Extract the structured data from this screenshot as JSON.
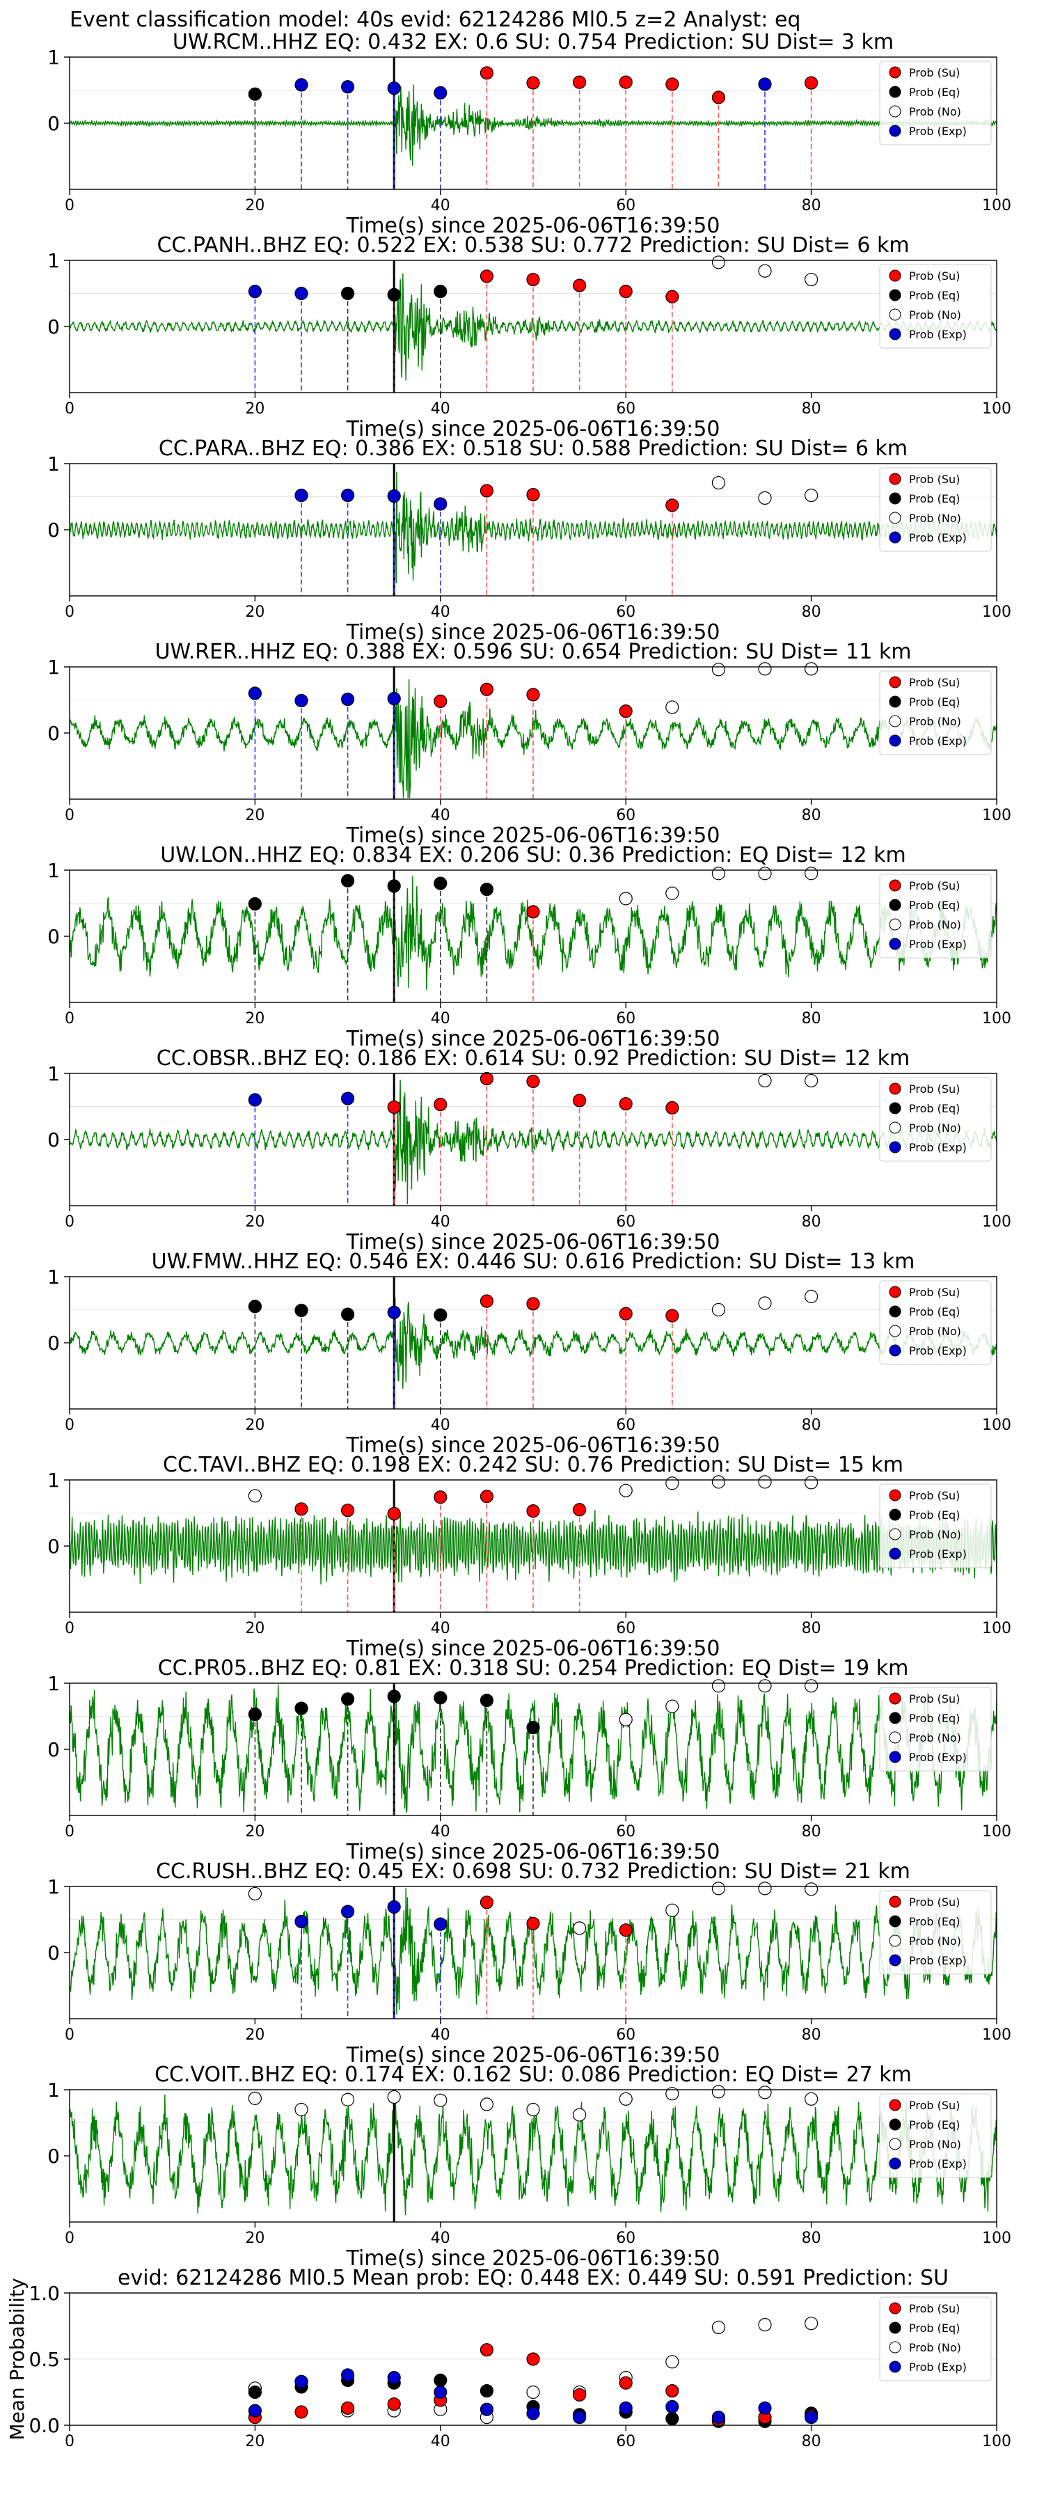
{
  "figure_title": "Event classification model: 40s evid: 62124286 Ml0.5 z=2 Analyst: eq",
  "colors": {
    "trace": "#008000",
    "su": "#ff0000",
    "eq": "#000000",
    "no": "#ffffff",
    "exp": "#0000cc",
    "onset_line": "#000000"
  },
  "chart_data": [
    {
      "type": "scatter",
      "title": "UW.RCM..HHZ   EQ: 0.432  EX: 0.6  SU: 0.754   Prediction: SU    Dist= 3 km",
      "xlabel": "Time(s) since 2025-06-06T16:39:50",
      "xlim": [
        0,
        100
      ],
      "ylim": [
        -1,
        1
      ],
      "x_ticks": [
        0,
        20,
        40,
        60,
        80,
        100
      ],
      "y_ticks": [
        1,
        0
      ],
      "onset": 35,
      "noise": 0.03,
      "burst": 0.55,
      "period": 0.25,
      "legend": [
        "Prob (Su)",
        "Prob (Eq)",
        "Prob (No)",
        "Prob (Exp)"
      ],
      "points": [
        [
          20,
          0.44,
          "eq"
        ],
        [
          25,
          0.58,
          "exp"
        ],
        [
          30,
          0.55,
          "exp"
        ],
        [
          35,
          0.53,
          "exp"
        ],
        [
          40,
          0.46,
          "exp"
        ],
        [
          45,
          0.76,
          "su"
        ],
        [
          50,
          0.61,
          "su"
        ],
        [
          55,
          0.62,
          "su"
        ],
        [
          60,
          0.62,
          "su"
        ],
        [
          65,
          0.59,
          "su"
        ],
        [
          70,
          0.39,
          "su"
        ],
        [
          75,
          0.59,
          "exp"
        ],
        [
          80,
          0.61,
          "su"
        ]
      ]
    },
    {
      "type": "scatter",
      "title": "CC.PANH..BHZ   EQ: 0.522  EX: 0.538  SU: 0.772   Prediction: SU    Dist= 6 km",
      "xlabel": "Time(s) since 2025-06-06T16:39:50",
      "xlim": [
        0,
        100
      ],
      "ylim": [
        -1,
        1
      ],
      "x_ticks": [
        0,
        20,
        40,
        60,
        80,
        100
      ],
      "y_ticks": [
        1,
        0
      ],
      "onset": 35,
      "noise": 0.07,
      "burst": 0.75,
      "period": 0.8,
      "legend": [
        "Prob (Su)",
        "Prob (Eq)",
        "Prob (No)",
        "Prob (Exp)"
      ],
      "points": [
        [
          20,
          0.53,
          "exp"
        ],
        [
          25,
          0.5,
          "exp"
        ],
        [
          30,
          0.5,
          "eq"
        ],
        [
          35,
          0.48,
          "eq"
        ],
        [
          40,
          0.53,
          "eq"
        ],
        [
          45,
          0.76,
          "su"
        ],
        [
          50,
          0.71,
          "su"
        ],
        [
          55,
          0.62,
          "su"
        ],
        [
          60,
          0.53,
          "su"
        ],
        [
          65,
          0.45,
          "su"
        ],
        [
          70,
          0.97,
          "no"
        ],
        [
          75,
          0.84,
          "no"
        ],
        [
          80,
          0.71,
          "no"
        ]
      ]
    },
    {
      "type": "scatter",
      "title": "CC.PARA..BHZ   EQ: 0.386  EX: 0.518  SU: 0.588   Prediction: SU    Dist= 6 km",
      "xlabel": "Time(s) since 2025-06-06T16:39:50",
      "xlim": [
        0,
        100
      ],
      "ylim": [
        -1,
        1
      ],
      "x_ticks": [
        0,
        20,
        40,
        60,
        80,
        100
      ],
      "y_ticks": [
        1,
        0
      ],
      "onset": 35,
      "noise": 0.12,
      "burst": 0.65,
      "period": 0.5,
      "legend": [
        "Prob (Su)",
        "Prob (Eq)",
        "Prob (No)",
        "Prob (Exp)"
      ],
      "points": [
        [
          25,
          0.52,
          "exp"
        ],
        [
          30,
          0.52,
          "exp"
        ],
        [
          35,
          0.51,
          "exp"
        ],
        [
          40,
          0.39,
          "exp"
        ],
        [
          45,
          0.59,
          "su"
        ],
        [
          50,
          0.53,
          "su"
        ],
        [
          65,
          0.37,
          "su"
        ],
        [
          70,
          0.71,
          "no"
        ],
        [
          75,
          0.48,
          "no"
        ],
        [
          80,
          0.52,
          "no"
        ]
      ]
    },
    {
      "type": "scatter",
      "title": "UW.RER..HHZ   EQ: 0.388  EX: 0.596  SU: 0.654   Prediction: SU    Dist= 11 km",
      "xlabel": "Time(s) since 2025-06-06T16:39:50",
      "xlim": [
        0,
        100
      ],
      "ylim": [
        -1,
        1
      ],
      "x_ticks": [
        0,
        20,
        40,
        60,
        80,
        100
      ],
      "y_ticks": [
        1,
        0
      ],
      "onset": 35,
      "noise": 0.2,
      "burst": 0.8,
      "period": 2.5,
      "legend": [
        "Prob (Su)",
        "Prob (Eq)",
        "Prob (No)",
        "Prob (Exp)"
      ],
      "points": [
        [
          20,
          0.6,
          "exp"
        ],
        [
          25,
          0.49,
          "exp"
        ],
        [
          30,
          0.51,
          "exp"
        ],
        [
          35,
          0.52,
          "exp"
        ],
        [
          40,
          0.48,
          "su"
        ],
        [
          45,
          0.66,
          "su"
        ],
        [
          50,
          0.58,
          "su"
        ],
        [
          60,
          0.33,
          "su"
        ],
        [
          65,
          0.39,
          "no"
        ],
        [
          70,
          0.96,
          "no"
        ],
        [
          75,
          0.97,
          "no"
        ],
        [
          80,
          0.97,
          "no"
        ]
      ]
    },
    {
      "type": "scatter",
      "title": "UW.LON..HHZ   EQ: 0.834  EX: 0.206  SU: 0.36   Prediction: EQ    Dist= 12 km",
      "xlabel": "Time(s) since 2025-06-06T16:39:50",
      "xlim": [
        0,
        100
      ],
      "ylim": [
        -1,
        1
      ],
      "x_ticks": [
        0,
        20,
        40,
        60,
        80,
        100
      ],
      "y_ticks": [
        1,
        0
      ],
      "onset": 35,
      "noise": 0.45,
      "burst": 0.55,
      "period": 3.0,
      "legend": [
        "Prob (Su)",
        "Prob (Eq)",
        "Prob (No)",
        "Prob (Exp)"
      ],
      "points": [
        [
          20,
          0.49,
          "eq"
        ],
        [
          30,
          0.84,
          "eq"
        ],
        [
          35,
          0.76,
          "eq"
        ],
        [
          40,
          0.8,
          "eq"
        ],
        [
          45,
          0.71,
          "eq"
        ],
        [
          50,
          0.37,
          "su"
        ],
        [
          60,
          0.57,
          "no"
        ],
        [
          65,
          0.65,
          "no"
        ],
        [
          70,
          0.95,
          "no"
        ],
        [
          75,
          0.95,
          "no"
        ],
        [
          80,
          0.95,
          "no"
        ]
      ]
    },
    {
      "type": "scatter",
      "title": "CC.OBSR..BHZ   EQ: 0.186  EX: 0.614  SU: 0.92   Prediction: SU    Dist= 12 km",
      "xlabel": "Time(s) since 2025-06-06T16:39:50",
      "xlim": [
        0,
        100
      ],
      "ylim": [
        -1,
        1
      ],
      "x_ticks": [
        0,
        20,
        40,
        60,
        80,
        100
      ],
      "y_ticks": [
        1,
        0
      ],
      "onset": 35,
      "noise": 0.12,
      "burst": 0.85,
      "period": 1.0,
      "legend": [
        "Prob (Su)",
        "Prob (Eq)",
        "Prob (No)",
        "Prob (Exp)"
      ],
      "points": [
        [
          20,
          0.6,
          "exp"
        ],
        [
          30,
          0.62,
          "exp"
        ],
        [
          35,
          0.49,
          "su"
        ],
        [
          40,
          0.53,
          "su"
        ],
        [
          45,
          0.92,
          "su"
        ],
        [
          50,
          0.88,
          "su"
        ],
        [
          55,
          0.59,
          "su"
        ],
        [
          60,
          0.54,
          "su"
        ],
        [
          65,
          0.48,
          "su"
        ],
        [
          75,
          0.89,
          "no"
        ],
        [
          80,
          0.89,
          "no"
        ]
      ]
    },
    {
      "type": "scatter",
      "title": "UW.FMW..HHZ   EQ: 0.546  EX: 0.446  SU: 0.616   Prediction: SU    Dist= 13 km",
      "xlabel": "Time(s) since 2025-06-06T16:39:50",
      "xlim": [
        0,
        100
      ],
      "ylim": [
        -1,
        1
      ],
      "x_ticks": [
        0,
        20,
        40,
        60,
        80,
        100
      ],
      "y_ticks": [
        1,
        0
      ],
      "onset": 35,
      "noise": 0.15,
      "burst": 0.55,
      "period": 2.0,
      "legend": [
        "Prob (Su)",
        "Prob (Eq)",
        "Prob (No)",
        "Prob (Exp)"
      ],
      "points": [
        [
          20,
          0.55,
          "eq"
        ],
        [
          25,
          0.49,
          "eq"
        ],
        [
          30,
          0.43,
          "eq"
        ],
        [
          35,
          0.46,
          "exp"
        ],
        [
          40,
          0.42,
          "eq"
        ],
        [
          45,
          0.63,
          "su"
        ],
        [
          50,
          0.59,
          "su"
        ],
        [
          60,
          0.44,
          "su"
        ],
        [
          65,
          0.41,
          "su"
        ],
        [
          70,
          0.5,
          "no"
        ],
        [
          75,
          0.6,
          "no"
        ],
        [
          80,
          0.7,
          "no"
        ]
      ]
    },
    {
      "type": "scatter",
      "title": "CC.TAVI..BHZ   EQ: 0.198  EX: 0.242  SU: 0.76   Prediction: SU    Dist= 15 km",
      "xlabel": "Time(s) since 2025-06-06T16:39:50",
      "xlim": [
        0,
        100
      ],
      "ylim": [
        -1,
        1
      ],
      "x_ticks": [
        0,
        20,
        40,
        60,
        80,
        100
      ],
      "y_ticks": [
        1,
        0
      ],
      "onset": 35,
      "noise": 0.4,
      "burst": 0.15,
      "period": 0.3,
      "legend": [
        "Prob (Su)",
        "Prob (Eq)",
        "Prob (No)",
        "Prob (Exp)"
      ],
      "points": [
        [
          20,
          0.76,
          "no"
        ],
        [
          25,
          0.56,
          "su"
        ],
        [
          30,
          0.54,
          "su"
        ],
        [
          35,
          0.49,
          "su"
        ],
        [
          40,
          0.74,
          "su"
        ],
        [
          45,
          0.75,
          "su"
        ],
        [
          50,
          0.53,
          "su"
        ],
        [
          55,
          0.55,
          "su"
        ],
        [
          60,
          0.84,
          "no"
        ],
        [
          65,
          0.95,
          "no"
        ],
        [
          70,
          0.97,
          "no"
        ],
        [
          75,
          0.97,
          "no"
        ],
        [
          80,
          0.96,
          "no"
        ]
      ]
    },
    {
      "type": "scatter",
      "title": "CC.PR05..BHZ   EQ: 0.81  EX: 0.318  SU: 0.254   Prediction: EQ    Dist= 19 km",
      "xlabel": "Time(s) since 2025-06-06T16:39:50",
      "xlim": [
        0,
        100
      ],
      "ylim": [
        -1,
        1
      ],
      "x_ticks": [
        0,
        20,
        40,
        60,
        80,
        100
      ],
      "y_ticks": [
        1,
        0
      ],
      "onset": 35,
      "noise": 0.7,
      "burst": 0.4,
      "period": 2.5,
      "legend": [
        "Prob (Su)",
        "Prob (Eq)",
        "Prob (No)",
        "Prob (Exp)"
      ],
      "points": [
        [
          20,
          0.53,
          "eq"
        ],
        [
          25,
          0.62,
          "eq"
        ],
        [
          30,
          0.76,
          "eq"
        ],
        [
          35,
          0.8,
          "eq"
        ],
        [
          40,
          0.78,
          "eq"
        ],
        [
          45,
          0.74,
          "eq"
        ],
        [
          50,
          0.33,
          "eq"
        ],
        [
          60,
          0.45,
          "no"
        ],
        [
          65,
          0.65,
          "no"
        ],
        [
          70,
          0.96,
          "no"
        ],
        [
          75,
          0.96,
          "no"
        ],
        [
          80,
          0.96,
          "no"
        ]
      ]
    },
    {
      "type": "scatter",
      "title": "CC.RUSH..BHZ   EQ: 0.45  EX: 0.698  SU: 0.732   Prediction: SU    Dist= 21 km",
      "xlabel": "Time(s) since 2025-06-06T16:39:50",
      "xlim": [
        0,
        100
      ],
      "ylim": [
        -1,
        1
      ],
      "x_ticks": [
        0,
        20,
        40,
        60,
        80,
        100
      ],
      "y_ticks": [
        1,
        0
      ],
      "onset": 35,
      "noise": 0.55,
      "burst": 0.45,
      "period": 2.2,
      "legend": [
        "Prob (Su)",
        "Prob (Eq)",
        "Prob (No)",
        "Prob (Exp)"
      ],
      "points": [
        [
          20,
          0.89,
          "no"
        ],
        [
          25,
          0.47,
          "exp"
        ],
        [
          30,
          0.62,
          "exp"
        ],
        [
          35,
          0.69,
          "exp"
        ],
        [
          40,
          0.43,
          "exp"
        ],
        [
          45,
          0.76,
          "su"
        ],
        [
          50,
          0.44,
          "su"
        ],
        [
          55,
          0.37,
          "no"
        ],
        [
          60,
          0.34,
          "su"
        ],
        [
          65,
          0.64,
          "no"
        ],
        [
          70,
          0.97,
          "no"
        ],
        [
          75,
          0.97,
          "no"
        ],
        [
          80,
          0.96,
          "no"
        ]
      ]
    },
    {
      "type": "scatter",
      "title": "CC.VOIT..BHZ   EQ: 0.174  EX: 0.162  SU: 0.086   Prediction: EQ    Dist= 27 km",
      "xlabel": "Time(s) since 2025-06-06T16:39:50",
      "xlim": [
        0,
        100
      ],
      "ylim": [
        -1,
        1
      ],
      "x_ticks": [
        0,
        20,
        40,
        60,
        80,
        100
      ],
      "y_ticks": [
        1,
        0
      ],
      "onset": 35,
      "noise": 0.65,
      "burst": 0.1,
      "period": 2.5,
      "legend": [
        "Prob (Su)",
        "Prob (Eq)",
        "Prob (No)",
        "Prob (Exp)"
      ],
      "points": [
        [
          20,
          0.87,
          "no"
        ],
        [
          25,
          0.7,
          "no"
        ],
        [
          30,
          0.85,
          "no"
        ],
        [
          35,
          0.89,
          "no"
        ],
        [
          40,
          0.84,
          "no"
        ],
        [
          45,
          0.78,
          "no"
        ],
        [
          50,
          0.7,
          "no"
        ],
        [
          55,
          0.62,
          "no"
        ],
        [
          60,
          0.86,
          "no"
        ],
        [
          65,
          0.94,
          "no"
        ],
        [
          70,
          0.97,
          "no"
        ],
        [
          75,
          0.96,
          "no"
        ],
        [
          80,
          0.86,
          "no"
        ]
      ]
    },
    {
      "type": "scatter",
      "title": "evid: 62124286  Ml0.5    Mean prob:   EQ: 0.448  EX: 0.449  SU: 0.591   Prediction: SU",
      "ylabel": "Mean Probability",
      "xlim": [
        0,
        100
      ],
      "ylim": [
        0,
        1
      ],
      "x_ticks": [
        0,
        20,
        40,
        60,
        80,
        100
      ],
      "y_ticks": [
        1.0,
        0.5,
        0.0
      ],
      "y_tick_labels": [
        "1.0",
        "0.5",
        "0.0"
      ],
      "legend": [
        "Prob (Su)",
        "Prob (Eq)",
        "Prob (No)",
        "Prob (Exp)"
      ],
      "series": [
        {
          "name": "Prob (Su)",
          "x": [
            20,
            25,
            30,
            35,
            40,
            45,
            50,
            55,
            60,
            65,
            70,
            75,
            80
          ],
          "values": [
            0.06,
            0.1,
            0.13,
            0.16,
            0.19,
            0.57,
            0.5,
            0.23,
            0.32,
            0.26,
            0.04,
            0.06,
            0.07
          ]
        },
        {
          "name": "Prob (Eq)",
          "x": [
            20,
            25,
            30,
            35,
            40,
            45,
            50,
            55,
            60,
            65,
            70,
            75,
            80
          ],
          "values": [
            0.25,
            0.29,
            0.34,
            0.32,
            0.34,
            0.26,
            0.14,
            0.08,
            0.1,
            0.05,
            0.03,
            0.03,
            0.09
          ]
        },
        {
          "name": "Prob (No)",
          "x": [
            20,
            25,
            30,
            35,
            40,
            45,
            50,
            55,
            60,
            65,
            70,
            75,
            80
          ],
          "values": [
            0.28,
            0.33,
            0.11,
            0.11,
            0.12,
            0.06,
            0.25,
            0.25,
            0.36,
            0.48,
            0.74,
            0.76,
            0.77
          ]
        },
        {
          "name": "Prob (Exp)",
          "x": [
            20,
            25,
            30,
            35,
            40,
            45,
            50,
            55,
            60,
            65,
            70,
            75,
            80
          ],
          "values": [
            0.11,
            0.33,
            0.38,
            0.36,
            0.25,
            0.12,
            0.09,
            0.06,
            0.13,
            0.14,
            0.06,
            0.13,
            0.06
          ]
        }
      ]
    }
  ]
}
